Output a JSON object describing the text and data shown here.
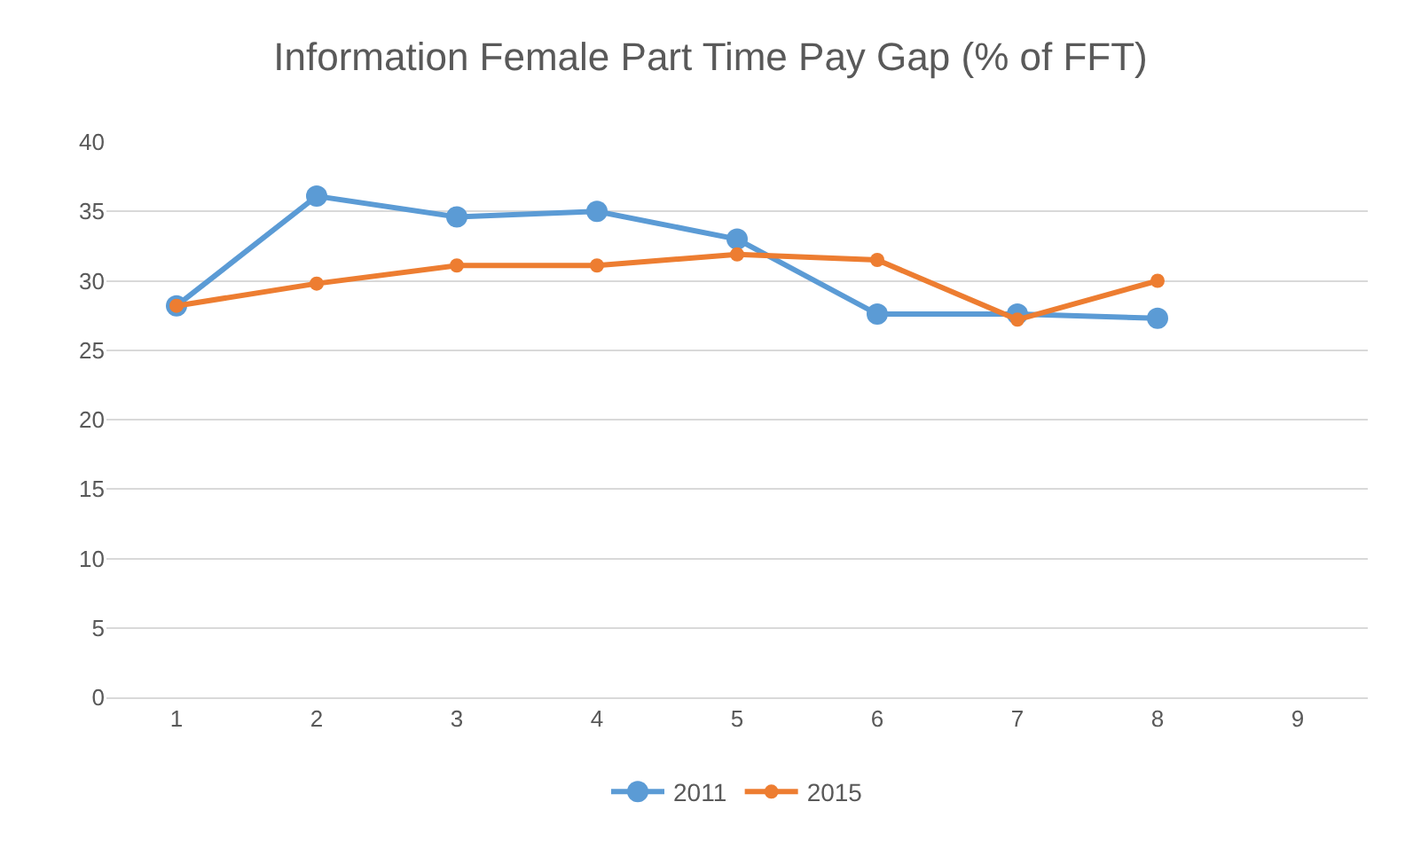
{
  "chart_data": {
    "type": "line",
    "title": "Information Female Part Time Pay Gap (% of FFT)",
    "categories": [
      "1",
      "2",
      "3",
      "4",
      "5",
      "6",
      "7",
      "8",
      "9"
    ],
    "series": [
      {
        "name": "2011",
        "color": "#5b9bd5",
        "values": [
          28.2,
          36.1,
          34.6,
          35.0,
          33.0,
          27.6,
          27.6,
          27.3,
          null
        ]
      },
      {
        "name": "2015",
        "color": "#ed7d31",
        "values": [
          28.2,
          29.8,
          31.1,
          31.1,
          31.9,
          31.5,
          27.2,
          30.0,
          null
        ]
      }
    ],
    "ylim": [
      0,
      40
    ],
    "yticks": [
      0,
      5,
      10,
      15,
      20,
      25,
      30,
      35,
      40
    ],
    "grid": "y",
    "legend": "bottom",
    "marker": "circle",
    "line_style": "solid"
  }
}
